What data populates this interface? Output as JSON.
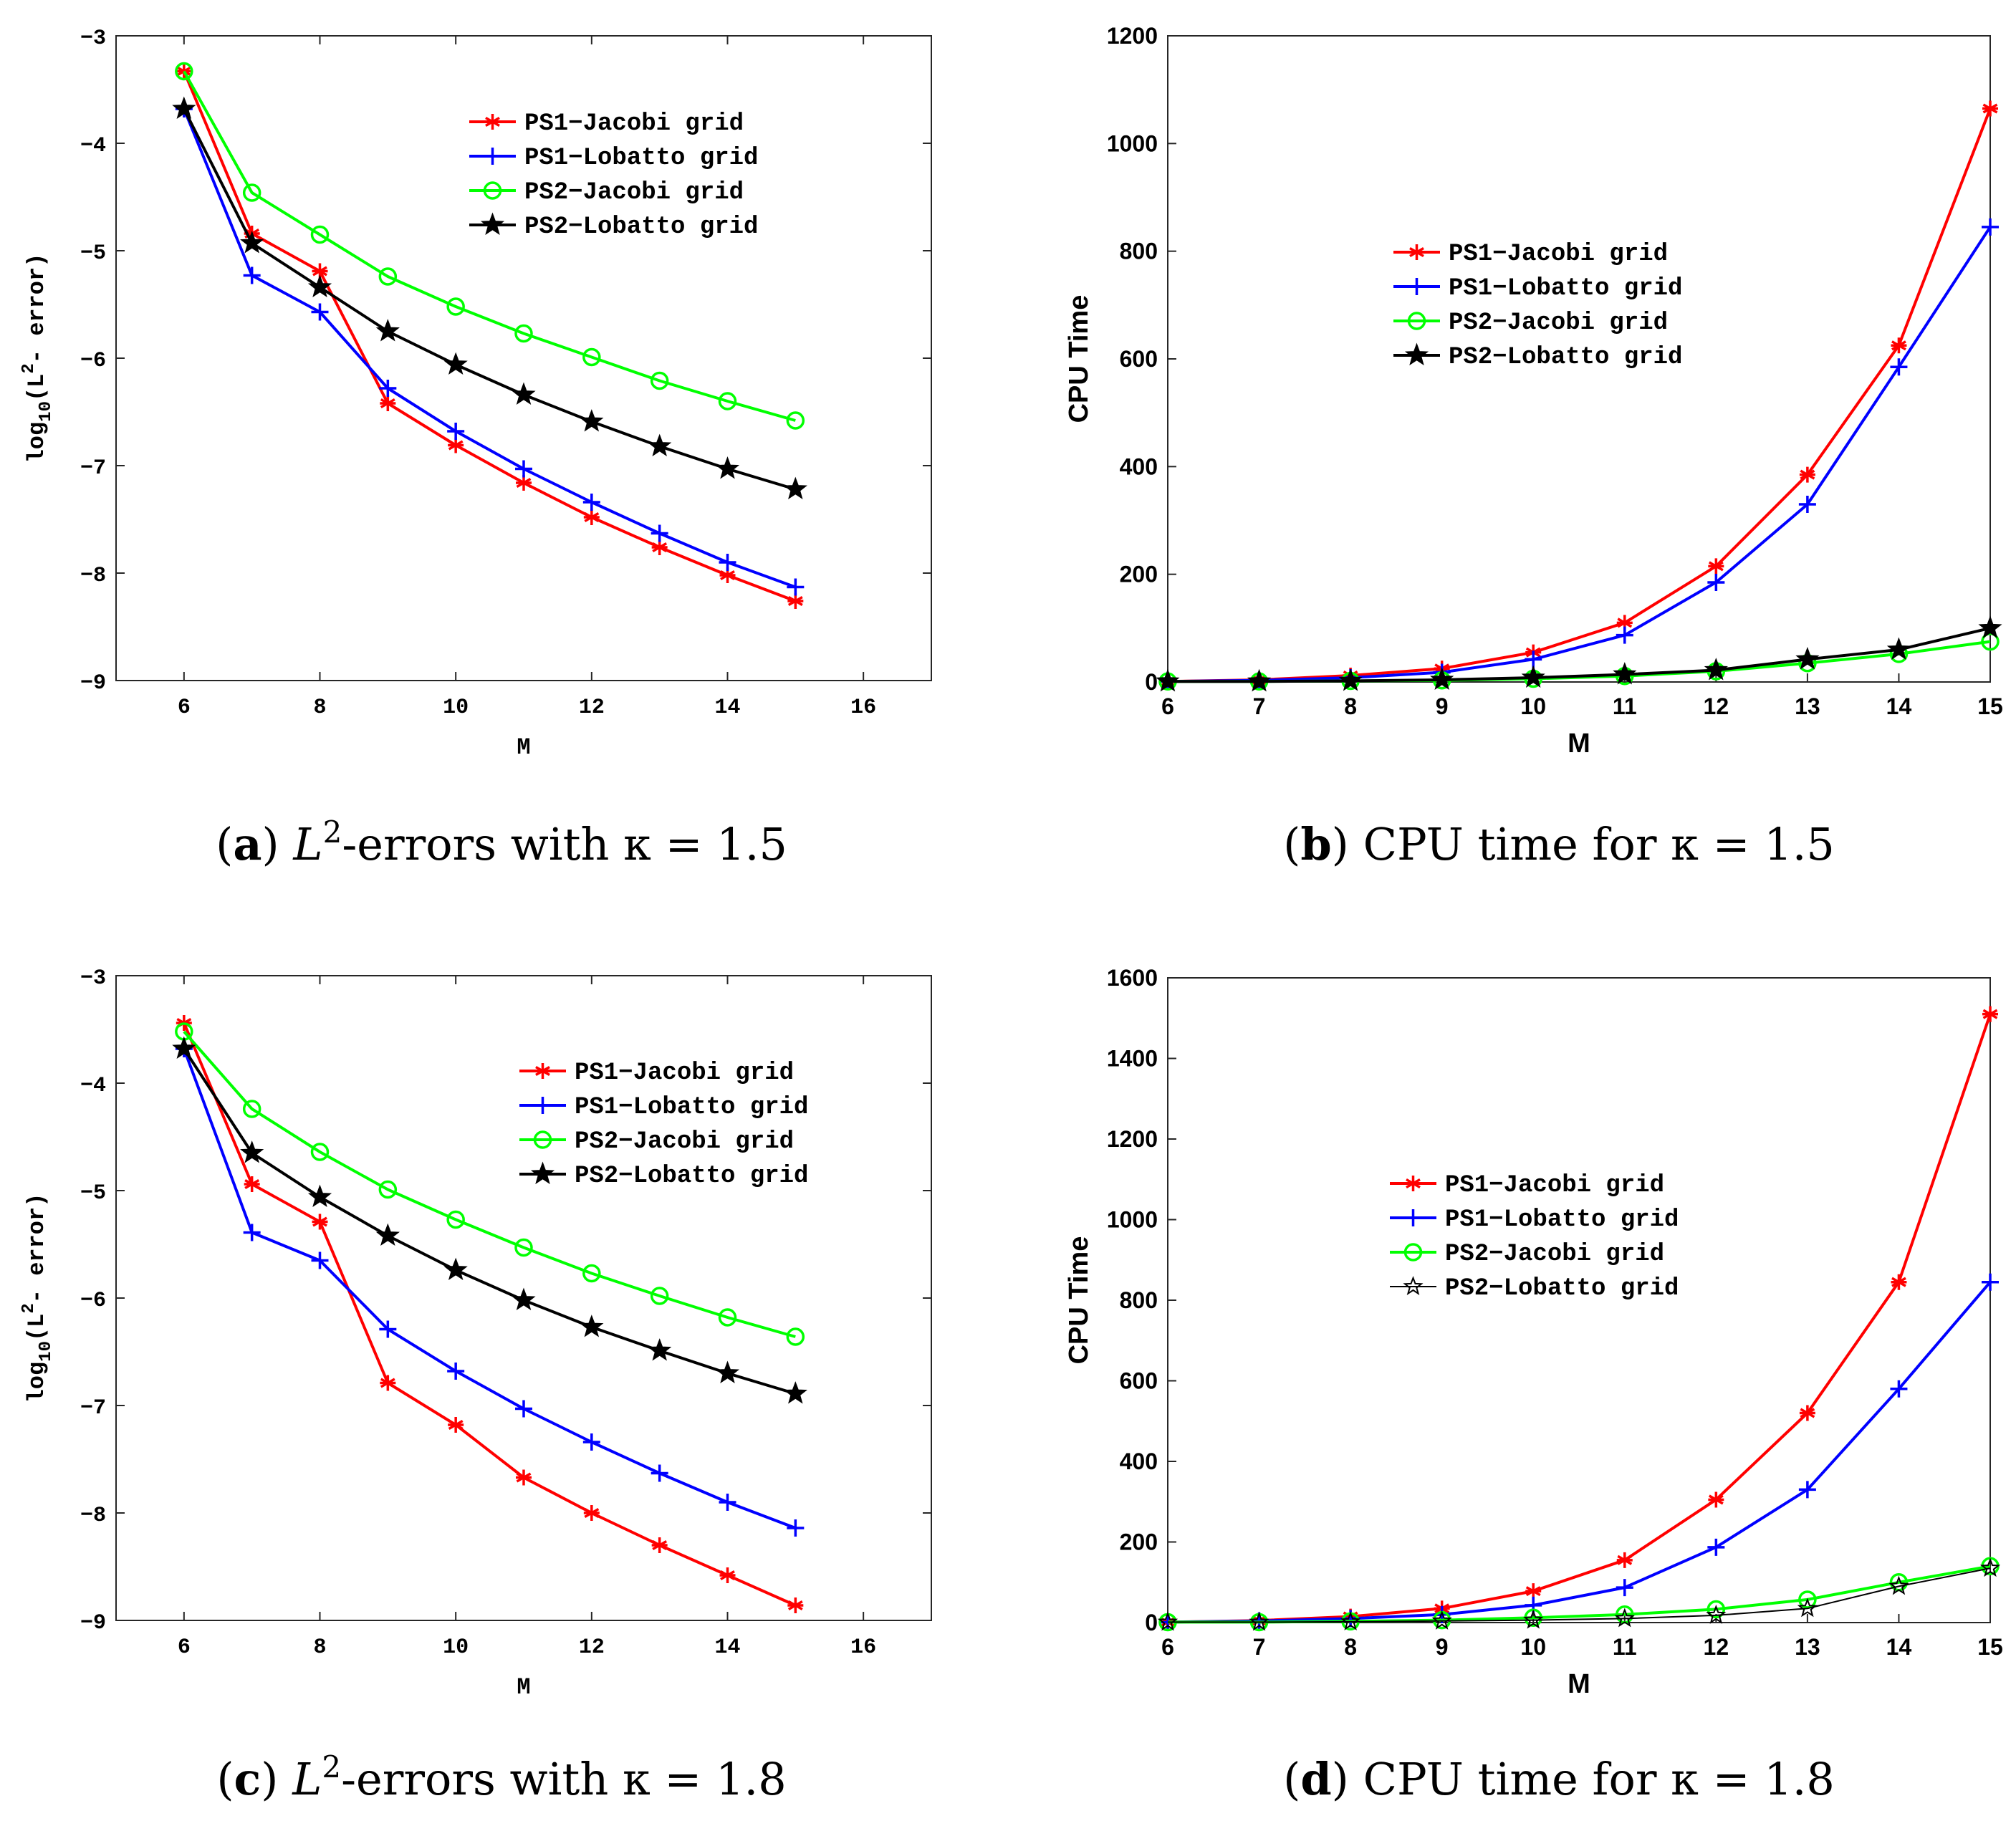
{
  "chart_data": [
    {
      "type": "line",
      "caption": {
        "letter": "a",
        "text": "-errors with κ = 1.5",
        "symbol": "L",
        "superscript": "2"
      },
      "xlabel": "M",
      "ylabel": "log10(L2- error)",
      "ylabel_parts": {
        "main": "log",
        "sub": "10",
        "paren_open": "(",
        "letter": "L",
        "sup": "2",
        "rest": "- error)"
      },
      "xlim": [
        5,
        17
      ],
      "ylim": [
        -9,
        -3
      ],
      "xticks": [
        6,
        8,
        10,
        12,
        14,
        16
      ],
      "yticks": [
        -3,
        -4,
        -5,
        -6,
        -7,
        -8,
        -9
      ],
      "tick_labels_x": [
        "6",
        "8",
        "10",
        "12",
        "14",
        "16"
      ],
      "tick_labels_y": [
        "−3",
        "−4",
        "−5",
        "−6",
        "−7",
        "−8",
        "−9"
      ],
      "legend_position": "top-right",
      "x": [
        6,
        7,
        8,
        9,
        10,
        11,
        12,
        13,
        14,
        15
      ],
      "series": [
        {
          "name": "PS1−Jacobi grid",
          "color": "#ff0000",
          "marker": "asterisk",
          "values": [
            -3.33,
            -4.84,
            -5.19,
            -6.42,
            -6.81,
            -7.16,
            -7.48,
            -7.76,
            -8.02,
            -8.26
          ]
        },
        {
          "name": "PS1−Lobatto grid",
          "color": "#0000ff",
          "marker": "plus",
          "values": [
            -3.68,
            -5.23,
            -5.57,
            -6.28,
            -6.68,
            -7.03,
            -7.34,
            -7.63,
            -7.9,
            -8.13
          ]
        },
        {
          "name": "PS2−Jacobi grid",
          "color": "#00ff00",
          "marker": "circle",
          "values": [
            -3.33,
            -4.46,
            -4.85,
            -5.24,
            -5.52,
            -5.77,
            -5.99,
            -6.21,
            -6.4,
            -6.58
          ]
        },
        {
          "name": "PS2−Lobatto grid",
          "color": "#000000",
          "marker": "star",
          "values": [
            -3.68,
            -4.93,
            -5.34,
            -5.75,
            -6.06,
            -6.34,
            -6.59,
            -6.82,
            -7.03,
            -7.22
          ]
        }
      ]
    },
    {
      "type": "line",
      "caption": {
        "letter": "b",
        "text": "CPU time for κ = 1.5"
      },
      "xlabel": "M",
      "ylabel": "CPU Time",
      "xlim": [
        6,
        15
      ],
      "ylim": [
        0,
        1200
      ],
      "xticks": [
        6,
        7,
        8,
        9,
        10,
        11,
        12,
        13,
        14,
        15
      ],
      "yticks": [
        0,
        200,
        400,
        600,
        800,
        1000,
        1200
      ],
      "tick_labels_x": [
        "6",
        "7",
        "8",
        "9",
        "10",
        "11",
        "12",
        "13",
        "14",
        "15"
      ],
      "tick_labels_y": [
        "0",
        "200",
        "400",
        "600",
        "800",
        "1000",
        "1200"
      ],
      "legend_position": "upper-left",
      "x": [
        6,
        7,
        8,
        9,
        10,
        11,
        12,
        13,
        14,
        15
      ],
      "series": [
        {
          "name": "PS1−Jacobi grid",
          "color": "#ff0000",
          "marker": "asterisk",
          "values": [
            1,
            4,
            12,
            25,
            55,
            110,
            215,
            385,
            625,
            1065
          ]
        },
        {
          "name": "PS1−Lobatto grid",
          "color": "#0000ff",
          "marker": "plus",
          "values": [
            1,
            3,
            8,
            18,
            42,
            87,
            185,
            330,
            585,
            845
          ]
        },
        {
          "name": "PS2−Jacobi grid",
          "color": "#00ff00",
          "marker": "circle",
          "values": [
            1,
            1,
            2,
            3,
            6,
            11,
            20,
            35,
            52,
            75
          ]
        },
        {
          "name": "PS2−Lobatto grid",
          "color": "#000000",
          "marker": "star",
          "values": [
            1,
            1,
            2,
            4,
            8,
            14,
            22,
            42,
            60,
            100
          ]
        }
      ]
    },
    {
      "type": "line",
      "caption": {
        "letter": "c",
        "text": "-errors with κ = 1.8",
        "symbol": "L",
        "superscript": "2"
      },
      "xlabel": "M",
      "ylabel": "log10(L2- error)",
      "ylabel_parts": {
        "main": "log",
        "sub": "10",
        "paren_open": "(",
        "letter": "L",
        "sup": "2",
        "rest": "- error)"
      },
      "xlim": [
        5,
        17
      ],
      "ylim": [
        -9,
        -3
      ],
      "xticks": [
        6,
        8,
        10,
        12,
        14,
        16
      ],
      "yticks": [
        -3,
        -4,
        -5,
        -6,
        -7,
        -8,
        -9
      ],
      "tick_labels_x": [
        "6",
        "8",
        "10",
        "12",
        "14",
        "16"
      ],
      "tick_labels_y": [
        "−3",
        "−4",
        "−5",
        "−6",
        "−7",
        "−8",
        "−9"
      ],
      "legend_position": "top-right",
      "x": [
        6,
        7,
        8,
        9,
        10,
        11,
        12,
        13,
        14,
        15
      ],
      "series": [
        {
          "name": "PS1−Jacobi grid",
          "color": "#ff0000",
          "marker": "asterisk",
          "values": [
            -3.44,
            -4.94,
            -5.29,
            -6.79,
            -7.18,
            -7.67,
            -8.0,
            -8.3,
            -8.58,
            -8.86
          ]
        },
        {
          "name": "PS1−Lobatto grid",
          "color": "#0000ff",
          "marker": "plus",
          "values": [
            -3.68,
            -5.39,
            -5.65,
            -6.29,
            -6.68,
            -7.03,
            -7.34,
            -7.63,
            -7.9,
            -8.14
          ]
        },
        {
          "name": "PS2−Jacobi grid",
          "color": "#00ff00",
          "marker": "circle",
          "values": [
            -3.52,
            -4.24,
            -4.64,
            -4.99,
            -5.27,
            -5.53,
            -5.77,
            -5.98,
            -6.18,
            -6.36
          ]
        },
        {
          "name": "PS2−Lobatto grid",
          "color": "#000000",
          "marker": "star",
          "values": [
            -3.68,
            -4.65,
            -5.06,
            -5.42,
            -5.74,
            -6.02,
            -6.27,
            -6.49,
            -6.7,
            -6.89
          ]
        }
      ]
    },
    {
      "type": "line",
      "caption": {
        "letter": "d",
        "text": "CPU time for κ = 1.8"
      },
      "xlabel": "M",
      "ylabel": "CPU Time",
      "xlim": [
        6,
        15
      ],
      "ylim": [
        0,
        1600
      ],
      "xticks": [
        6,
        7,
        8,
        9,
        10,
        11,
        12,
        13,
        14,
        15
      ],
      "yticks": [
        0,
        200,
        400,
        600,
        800,
        1000,
        1200,
        1400,
        1600
      ],
      "tick_labels_x": [
        "6",
        "7",
        "8",
        "9",
        "10",
        "11",
        "12",
        "13",
        "14",
        "15"
      ],
      "tick_labels_y": [
        "0",
        "200",
        "400",
        "600",
        "800",
        "1000",
        "1200",
        "1400",
        "1600"
      ],
      "legend_position": "center-left",
      "x": [
        6,
        7,
        8,
        9,
        10,
        11,
        12,
        13,
        14,
        15
      ],
      "series": [
        {
          "name": "PS1−Jacobi grid",
          "color": "#ff0000",
          "marker": "asterisk",
          "values": [
            1,
            5,
            15,
            35,
            78,
            155,
            305,
            520,
            845,
            1510
          ]
        },
        {
          "name": "PS1−Lobatto grid",
          "color": "#0000ff",
          "marker": "plus",
          "values": [
            1,
            4,
            10,
            20,
            43,
            87,
            187,
            330,
            580,
            845
          ]
        },
        {
          "name": "PS2−Jacobi grid",
          "color": "#00ff00",
          "marker": "circle",
          "values": [
            1,
            1,
            3,
            6,
            12,
            20,
            33,
            57,
            100,
            140
          ]
        },
        {
          "name": "PS2−Lobatto grid",
          "color": "#000000",
          "marker": "star-open",
          "values": [
            1,
            1,
            2,
            4,
            6,
            10,
            18,
            35,
            90,
            135
          ]
        }
      ]
    }
  ]
}
